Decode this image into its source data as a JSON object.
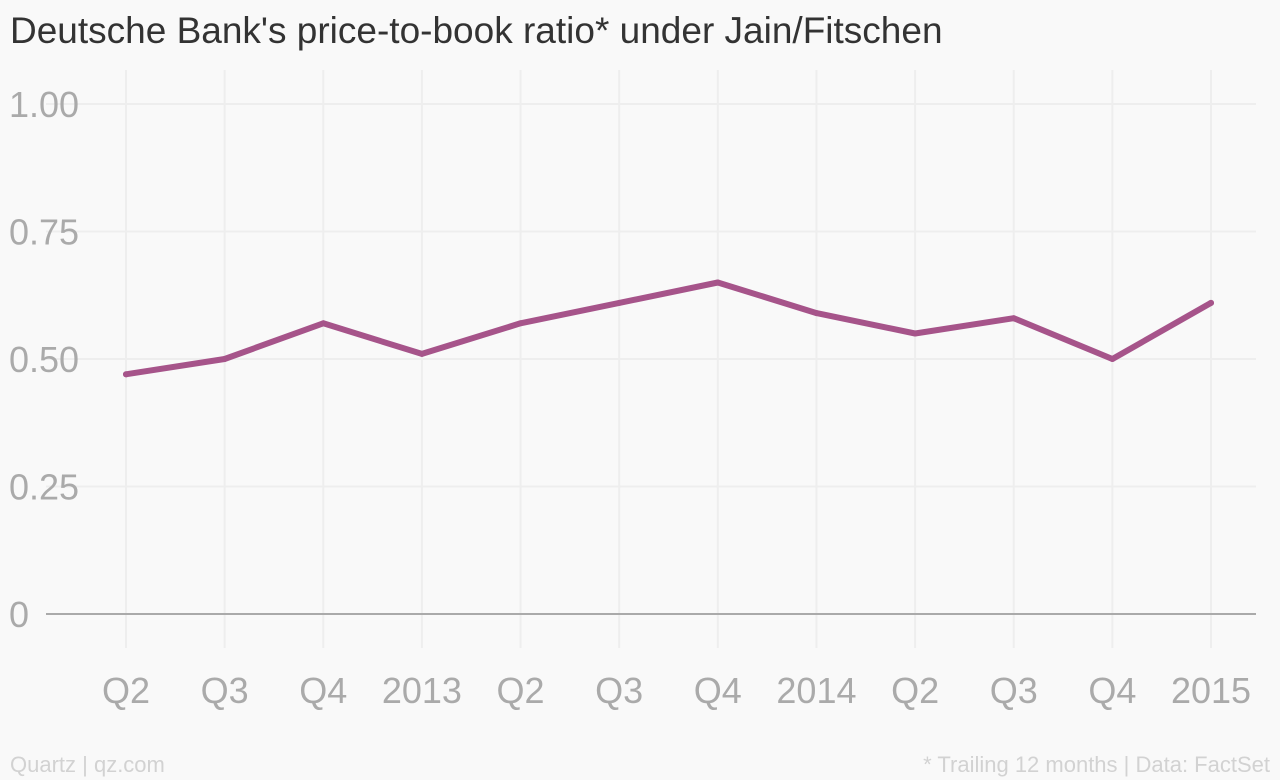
{
  "header": {
    "title": "Deutsche Bank's price-to-book ratio* under Jain/Fitschen"
  },
  "footer": {
    "source": "Quartz | qz.com",
    "note": "* Trailing 12 months | Data: FactSet"
  },
  "chart_data": {
    "type": "line",
    "title": "Deutsche Bank's price-to-book ratio* under Jain/Fitschen",
    "xlabel": "",
    "ylabel": "",
    "categories": [
      "Q2",
      "Q3",
      "Q4",
      "2013",
      "Q2",
      "Q3",
      "Q4",
      "2014",
      "Q2",
      "Q3",
      "Q4",
      "2015"
    ],
    "series": [
      {
        "values": [
          0.47,
          0.5,
          0.57,
          0.51,
          0.57,
          0.61,
          0.65,
          0.59,
          0.55,
          0.58,
          0.5,
          0.61
        ]
      }
    ],
    "ylim": [
      0,
      1.0
    ],
    "yticks": [
      0,
      0.25,
      0.5,
      0.75,
      1.0
    ],
    "ytick_labels": [
      "0",
      "0.25",
      "0.50",
      "0.75",
      "1.00"
    ],
    "grid": true,
    "line_color": "#a6548a",
    "grid_color": "#eeeeee",
    "baseline_color": "#aaaaaa"
  }
}
